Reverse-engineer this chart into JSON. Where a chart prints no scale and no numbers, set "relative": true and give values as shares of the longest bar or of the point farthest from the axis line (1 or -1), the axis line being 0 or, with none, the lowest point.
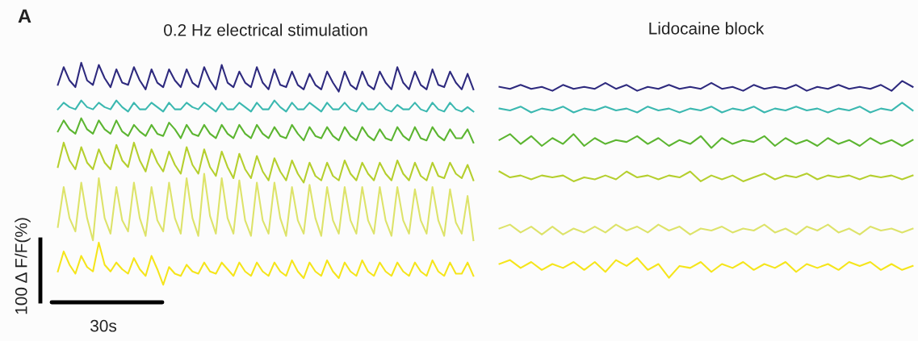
{
  "chart_data": [
    {
      "type": "line",
      "title": "0.2 Hz electrical stimulation",
      "relative": true,
      "annotations": [
        "A",
        "100 Δ F/F(%)",
        "30s"
      ],
      "categories": [
        null,
        null,
        null,
        null,
        null,
        null,
        null,
        null,
        null,
        null,
        null,
        null,
        null,
        null,
        null,
        null,
        null,
        null,
        null,
        null,
        null,
        null,
        null,
        null,
        null,
        null,
        null,
        null,
        null,
        null,
        null,
        null,
        null,
        null,
        null,
        null,
        null,
        null,
        null,
        null,
        null,
        null,
        null,
        null,
        null,
        null,
        null,
        null,
        null,
        null,
        null,
        null,
        null,
        null,
        null,
        null,
        null,
        null,
        null,
        null,
        null,
        null,
        null,
        null,
        null,
        null,
        null,
        null,
        null,
        null,
        null,
        null
      ],
      "series": [
        {
          "color": "#2e2a7e",
          "values": [
            0.9,
            0.98,
            0.92,
            0.89,
            1.0,
            0.92,
            0.9,
            0.99,
            0.93,
            0.89,
            0.97,
            0.91,
            0.9,
            0.98,
            0.92,
            0.88,
            0.97,
            0.91,
            0.89,
            0.97,
            0.92,
            0.89,
            0.97,
            0.91,
            0.89,
            0.98,
            0.92,
            0.88,
            0.99,
            0.91,
            0.89,
            0.96,
            0.91,
            0.89,
            0.98,
            0.91,
            0.88,
            0.97,
            0.9,
            0.89,
            0.96,
            0.9,
            0.88,
            0.95,
            0.9,
            0.88,
            0.96,
            0.91,
            0.87,
            0.96,
            0.9,
            0.88,
            0.96,
            0.9,
            0.88,
            0.96,
            0.91,
            0.88,
            0.98,
            0.91,
            0.88,
            0.96,
            0.9,
            0.88,
            0.97,
            0.9,
            0.89,
            0.96,
            0.91,
            0.88,
            0.95,
            0.88
          ]
        },
        {
          "color": "#3bb8b0",
          "values": [
            0.79,
            0.82,
            0.8,
            0.79,
            0.83,
            0.8,
            0.79,
            0.82,
            0.8,
            0.79,
            0.83,
            0.8,
            0.78,
            0.82,
            0.79,
            0.79,
            0.82,
            0.8,
            0.78,
            0.82,
            0.79,
            0.79,
            0.82,
            0.8,
            0.79,
            0.82,
            0.8,
            0.78,
            0.82,
            0.79,
            0.79,
            0.82,
            0.8,
            0.78,
            0.82,
            0.79,
            0.79,
            0.83,
            0.8,
            0.78,
            0.82,
            0.79,
            0.79,
            0.82,
            0.8,
            0.78,
            0.82,
            0.79,
            0.79,
            0.82,
            0.79,
            0.78,
            0.82,
            0.79,
            0.79,
            0.82,
            0.79,
            0.78,
            0.81,
            0.79,
            0.79,
            0.82,
            0.79,
            0.78,
            0.82,
            0.79,
            0.78,
            0.82,
            0.79,
            0.78,
            0.8,
            0.78
          ]
        },
        {
          "color": "#5cb531",
          "values": [
            0.69,
            0.74,
            0.7,
            0.68,
            0.75,
            0.7,
            0.68,
            0.74,
            0.7,
            0.68,
            0.74,
            0.69,
            0.67,
            0.72,
            0.69,
            0.67,
            0.72,
            0.68,
            0.67,
            0.73,
            0.7,
            0.66,
            0.72,
            0.68,
            0.67,
            0.72,
            0.68,
            0.66,
            0.72,
            0.68,
            0.66,
            0.72,
            0.68,
            0.66,
            0.72,
            0.68,
            0.66,
            0.71,
            0.67,
            0.66,
            0.72,
            0.68,
            0.65,
            0.71,
            0.67,
            0.66,
            0.71,
            0.67,
            0.65,
            0.71,
            0.67,
            0.65,
            0.71,
            0.67,
            0.65,
            0.7,
            0.66,
            0.65,
            0.71,
            0.67,
            0.65,
            0.71,
            0.66,
            0.65,
            0.71,
            0.67,
            0.65,
            0.7,
            0.66,
            0.66,
            0.7,
            0.64
          ]
        },
        {
          "color": "#b5cf2e",
          "values": [
            0.53,
            0.64,
            0.56,
            0.52,
            0.62,
            0.55,
            0.52,
            0.61,
            0.55,
            0.52,
            0.63,
            0.56,
            0.53,
            0.64,
            0.56,
            0.51,
            0.61,
            0.55,
            0.51,
            0.6,
            0.54,
            0.5,
            0.62,
            0.54,
            0.5,
            0.61,
            0.53,
            0.49,
            0.6,
            0.53,
            0.48,
            0.59,
            0.52,
            0.48,
            0.58,
            0.51,
            0.47,
            0.57,
            0.51,
            0.47,
            0.56,
            0.5,
            0.46,
            0.55,
            0.49,
            0.47,
            0.55,
            0.49,
            0.47,
            0.56,
            0.5,
            0.47,
            0.55,
            0.5,
            0.47,
            0.55,
            0.5,
            0.47,
            0.56,
            0.5,
            0.47,
            0.55,
            0.49,
            0.47,
            0.55,
            0.49,
            0.48,
            0.55,
            0.5,
            0.48,
            0.54,
            0.47
          ]
        },
        {
          "color": "#dde36a",
          "values": [
            0.26,
            0.44,
            0.3,
            0.24,
            0.46,
            0.3,
            0.2,
            0.48,
            0.3,
            0.23,
            0.44,
            0.29,
            0.24,
            0.46,
            0.3,
            0.22,
            0.44,
            0.29,
            0.24,
            0.46,
            0.3,
            0.23,
            0.48,
            0.3,
            0.22,
            0.5,
            0.31,
            0.23,
            0.48,
            0.3,
            0.23,
            0.47,
            0.29,
            0.22,
            0.46,
            0.29,
            0.23,
            0.46,
            0.3,
            0.22,
            0.44,
            0.29,
            0.23,
            0.45,
            0.3,
            0.22,
            0.44,
            0.29,
            0.23,
            0.44,
            0.29,
            0.23,
            0.44,
            0.29,
            0.23,
            0.44,
            0.29,
            0.22,
            0.44,
            0.29,
            0.23,
            0.43,
            0.29,
            0.23,
            0.44,
            0.29,
            0.22,
            0.43,
            0.28,
            0.23,
            0.4,
            0.2
          ]
        },
        {
          "color": "#f5e51b",
          "values": [
            0.06,
            0.15,
            0.09,
            0.05,
            0.13,
            0.08,
            0.06,
            0.19,
            0.09,
            0.06,
            0.1,
            0.07,
            0.05,
            0.12,
            0.07,
            0.04,
            0.13,
            0.07,
            0.0,
            0.08,
            0.05,
            0.04,
            0.09,
            0.06,
            0.05,
            0.1,
            0.06,
            0.05,
            0.1,
            0.07,
            0.04,
            0.1,
            0.06,
            0.04,
            0.1,
            0.06,
            0.04,
            0.1,
            0.06,
            0.04,
            0.11,
            0.06,
            0.03,
            0.1,
            0.06,
            0.04,
            0.11,
            0.06,
            0.03,
            0.1,
            0.06,
            0.04,
            0.11,
            0.06,
            0.04,
            0.1,
            0.06,
            0.04,
            0.1,
            0.06,
            0.04,
            0.1,
            0.06,
            0.04,
            0.11,
            0.06,
            0.04,
            0.1,
            0.05,
            0.05,
            0.1,
            0.04
          ]
        }
      ]
    },
    {
      "type": "line",
      "title": "Lidocaine block",
      "relative": true,
      "categories": [
        null,
        null,
        null,
        null,
        null,
        null,
        null,
        null,
        null,
        null,
        null,
        null,
        null,
        null,
        null,
        null,
        null,
        null,
        null,
        null,
        null,
        null,
        null,
        null,
        null,
        null,
        null,
        null,
        null,
        null,
        null,
        null,
        null,
        null,
        null,
        null,
        null,
        null,
        null,
        null
      ],
      "series": [
        {
          "color": "#2e2a7e",
          "values": [
            0.97,
            0.96,
            0.98,
            0.96,
            0.97,
            0.95,
            0.98,
            0.96,
            0.97,
            0.96,
            0.99,
            0.96,
            0.98,
            0.95,
            0.97,
            0.96,
            0.98,
            0.96,
            0.97,
            0.96,
            0.99,
            0.96,
            0.97,
            0.95,
            0.98,
            0.96,
            0.97,
            0.96,
            0.98,
            0.95,
            0.97,
            0.96,
            0.98,
            0.96,
            0.97,
            0.96,
            0.98,
            0.95,
            1.0,
            0.97
          ]
        },
        {
          "color": "#3bb8b0",
          "values": [
            0.86,
            0.85,
            0.87,
            0.84,
            0.86,
            0.85,
            0.87,
            0.84,
            0.86,
            0.85,
            0.87,
            0.85,
            0.86,
            0.84,
            0.87,
            0.85,
            0.86,
            0.84,
            0.86,
            0.85,
            0.87,
            0.84,
            0.86,
            0.85,
            0.87,
            0.84,
            0.86,
            0.85,
            0.87,
            0.85,
            0.86,
            0.84,
            0.86,
            0.85,
            0.87,
            0.84,
            0.86,
            0.85,
            0.89,
            0.85
          ]
        },
        {
          "color": "#5cb531",
          "values": [
            0.7,
            0.73,
            0.68,
            0.72,
            0.67,
            0.71,
            0.68,
            0.73,
            0.67,
            0.71,
            0.68,
            0.7,
            0.69,
            0.72,
            0.68,
            0.71,
            0.67,
            0.7,
            0.68,
            0.72,
            0.66,
            0.71,
            0.68,
            0.7,
            0.69,
            0.72,
            0.67,
            0.71,
            0.68,
            0.7,
            0.67,
            0.71,
            0.68,
            0.7,
            0.67,
            0.71,
            0.68,
            0.7,
            0.67,
            0.7
          ]
        },
        {
          "color": "#b5cf2e",
          "values": [
            0.54,
            0.51,
            0.52,
            0.5,
            0.52,
            0.51,
            0.52,
            0.49,
            0.51,
            0.5,
            0.52,
            0.5,
            0.54,
            0.51,
            0.52,
            0.5,
            0.52,
            0.51,
            0.54,
            0.49,
            0.52,
            0.5,
            0.52,
            0.49,
            0.51,
            0.53,
            0.5,
            0.52,
            0.51,
            0.53,
            0.5,
            0.52,
            0.51,
            0.52,
            0.5,
            0.52,
            0.51,
            0.52,
            0.5,
            0.52
          ]
        },
        {
          "color": "#dde36a",
          "values": [
            0.25,
            0.27,
            0.23,
            0.26,
            0.22,
            0.26,
            0.22,
            0.25,
            0.23,
            0.26,
            0.23,
            0.27,
            0.24,
            0.26,
            0.23,
            0.27,
            0.24,
            0.26,
            0.22,
            0.25,
            0.24,
            0.26,
            0.23,
            0.25,
            0.24,
            0.27,
            0.23,
            0.25,
            0.22,
            0.26,
            0.24,
            0.27,
            0.23,
            0.25,
            0.22,
            0.26,
            0.24,
            0.25,
            0.23,
            0.25
          ]
        },
        {
          "color": "#f5e51b",
          "values": [
            0.07,
            0.09,
            0.05,
            0.08,
            0.04,
            0.07,
            0.05,
            0.08,
            0.04,
            0.08,
            0.03,
            0.09,
            0.06,
            0.1,
            0.04,
            0.07,
            0.0,
            0.06,
            0.05,
            0.08,
            0.03,
            0.07,
            0.05,
            0.08,
            0.04,
            0.07,
            0.05,
            0.08,
            0.03,
            0.07,
            0.05,
            0.07,
            0.04,
            0.08,
            0.06,
            0.08,
            0.04,
            0.07,
            0.04,
            0.06
          ]
        }
      ]
    }
  ]
}
